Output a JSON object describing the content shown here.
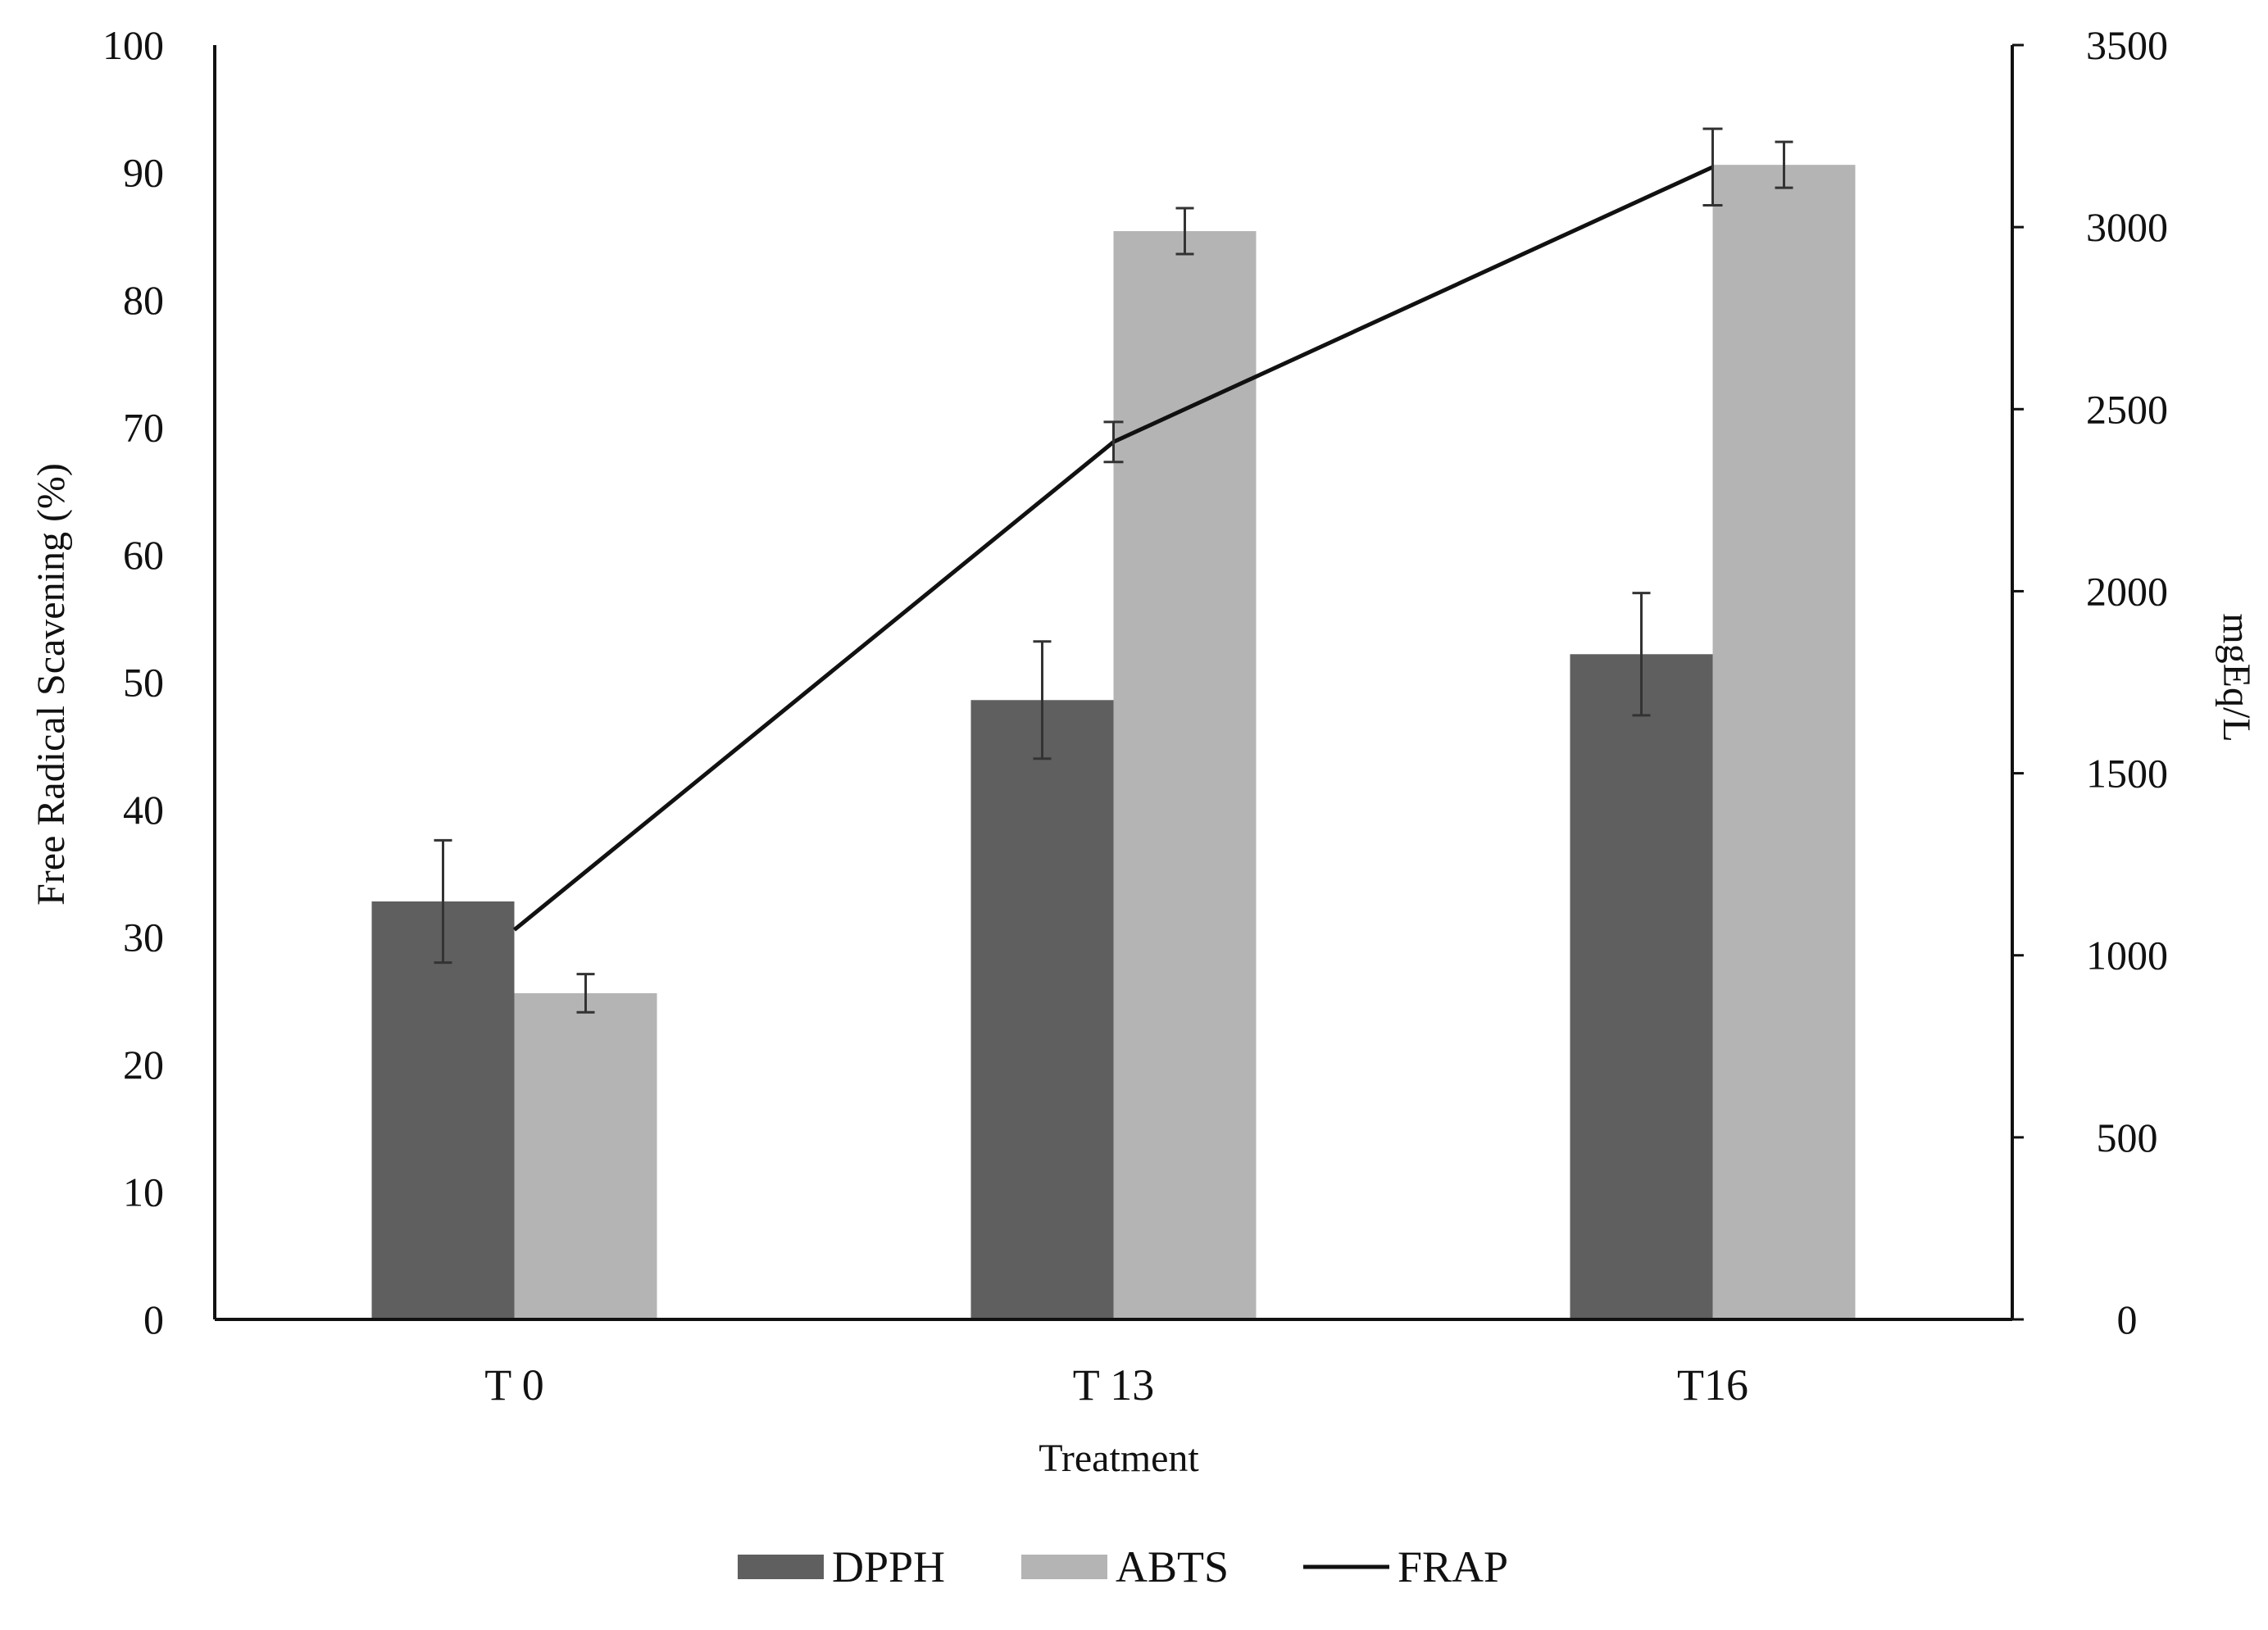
{
  "chart_data": {
    "type": "bar",
    "title": "",
    "xlabel": "Treatment",
    "ylabel": "Free Radical Scavening (%)",
    "y2label": "mgEq/L",
    "categories": [
      "T 0",
      "T 13",
      "T16"
    ],
    "ylim": [
      0,
      100
    ],
    "y2lim": [
      0,
      3500
    ],
    "yticks": [
      "0",
      "10",
      "20",
      "30",
      "40",
      "50",
      "60",
      "70",
      "80",
      "90",
      "100"
    ],
    "y2ticks": [
      "0",
      "500",
      "1000",
      "1500",
      "2000",
      "2500",
      "3000",
      "3500"
    ],
    "grid": false,
    "legend_position": "bottom",
    "series": [
      {
        "name": "DPPH",
        "type": "bar",
        "axis": "left",
        "color": "#5f5f5f",
        "values": [
          32.8,
          48.6,
          52.2
        ],
        "errors": [
          4.8,
          4.6,
          4.8
        ]
      },
      {
        "name": "ABTS",
        "type": "bar",
        "axis": "left",
        "color": "#b4b4b4",
        "values": [
          25.6,
          85.4,
          90.6
        ],
        "errors": [
          1.5,
          1.8,
          1.8
        ]
      },
      {
        "name": "FRAP",
        "type": "line",
        "axis": "right",
        "color": "#111111",
        "values": [
          1070,
          2410,
          3165
        ],
        "errors": [
          0,
          55,
          105
        ]
      }
    ]
  }
}
